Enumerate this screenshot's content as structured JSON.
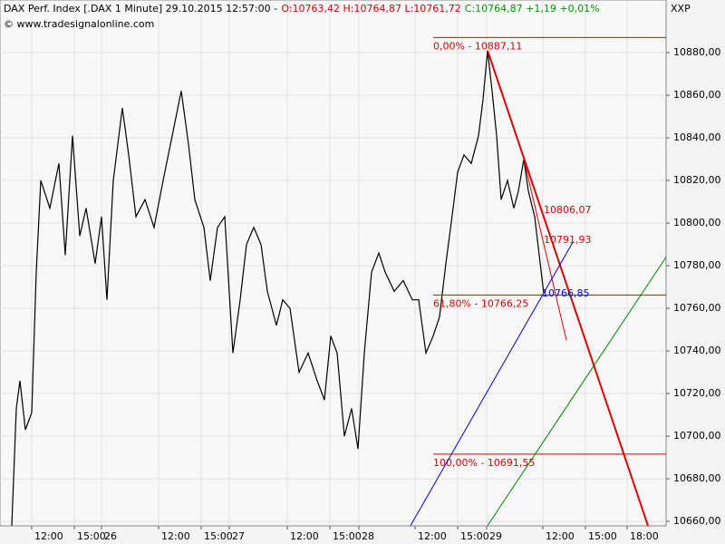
{
  "chart_data": {
    "type": "line",
    "title": "DAX Perf. Index [.DAX  1 Minute] 29.10.2015 12:57:00 -",
    "ohl": "O:10763,42 H:10764,87 L:10761,72",
    "close_change": "C:10764,87 +1,19 +0,01%",
    "source": "© www.tradesignalonline.com",
    "axis_label": "XXP",
    "series": [
      {
        "name": "DAX Perf. Index",
        "color": "#000000",
        "x": [
          13,
          18,
          22,
          28,
          35,
          40,
          45,
          55,
          65,
          72,
          80,
          88,
          95,
          105,
          112,
          118,
          125,
          135,
          142,
          150,
          160,
          170,
          180,
          190,
          200,
          208,
          215,
          225,
          232,
          240,
          248,
          257,
          265,
          272,
          280,
          288,
          295,
          305,
          312,
          320,
          330,
          340,
          350,
          358,
          365,
          372,
          380,
          388,
          395,
          402,
          410,
          418,
          425,
          435,
          445,
          455,
          462,
          470,
          478,
          485,
          492,
          500,
          505,
          512,
          520,
          528,
          533,
          538,
          543,
          548,
          553,
          560,
          567,
          572,
          578,
          583,
          590,
          595,
          600
        ],
        "values": [
          10658,
          10713,
          10726,
          10703,
          10711,
          10777,
          10820,
          10807,
          10828,
          10785,
          10841,
          10794,
          10807,
          10781,
          10803,
          10764,
          10820,
          10854,
          10832,
          10803,
          10811,
          10798,
          10820,
          10841,
          10862,
          10837,
          10811,
          10798,
          10773,
          10798,
          10803,
          10739,
          10764,
          10790,
          10798,
          10790,
          10768,
          10752,
          10764,
          10760,
          10730,
          10739,
          10726,
          10717,
          10747,
          10739,
          10700,
          10713,
          10694,
          10739,
          10777,
          10786,
          10777,
          10768,
          10773,
          10764,
          10764,
          10739,
          10747,
          10756,
          10781,
          10807,
          10824,
          10832,
          10828,
          10841,
          10858,
          10881,
          10862,
          10841,
          10811,
          10820,
          10807,
          10815,
          10830,
          10815,
          10803,
          10785,
          10767
        ]
      }
    ],
    "levels": [
      {
        "value": 10887.11,
        "label": "0,00% - 10887,11"
      },
      {
        "value": 10766.25,
        "label": "61,80% - 10766,25"
      },
      {
        "value": 10691.55,
        "label": "100,00% - 10691,55"
      }
    ],
    "level_color": "#e00000",
    "level_xlim": [
      478,
      735
    ],
    "price_labels": [
      {
        "x": 600,
        "value": 10806.07,
        "label": "10806,07",
        "color": "#e00000"
      },
      {
        "x": 600,
        "value": 10791.93,
        "label": "10791,93",
        "color": "#e00000"
      },
      {
        "x": 598,
        "value": 10766.85,
        "label": "10766,85",
        "color": "#0000e0"
      }
    ],
    "trendlines": [
      {
        "color": "#e00000",
        "width": 2,
        "x": [
          538,
          715
        ],
        "y": [
          10881,
          10658
        ]
      },
      {
        "color": "#e00000",
        "width": 1,
        "x": [
          578,
          625
        ],
        "y": [
          10830,
          10745
        ]
      },
      {
        "color": "#0000e0",
        "width": 1,
        "x": [
          453,
          632
        ],
        "y": [
          10658,
          10791
        ]
      },
      {
        "color": "#008000",
        "width": 1,
        "x": [
          538,
          735
        ],
        "y": [
          10658,
          10784
        ]
      }
    ],
    "xlim": [
      0,
      735
    ],
    "xticks": [
      {
        "value": 35,
        "label": "12:00"
      },
      {
        "value": 82,
        "label": "15:00"
      },
      {
        "value": 112,
        "label": "26"
      },
      {
        "value": 175,
        "label": "12:00"
      },
      {
        "value": 222,
        "label": "15:00"
      },
      {
        "value": 253,
        "label": "27"
      },
      {
        "value": 317,
        "label": "12:00"
      },
      {
        "value": 364,
        "label": "15:00"
      },
      {
        "value": 396,
        "label": "28"
      },
      {
        "value": 458,
        "label": "12:00"
      },
      {
        "value": 505,
        "label": "15:00"
      },
      {
        "value": 537,
        "label": "29"
      },
      {
        "value": 599,
        "label": "12:00"
      },
      {
        "value": 646,
        "label": "15:00"
      },
      {
        "value": 692,
        "label": "18:00"
      }
    ],
    "ylim": [
      10657.9,
      10904.7
    ],
    "yticks": [
      {
        "value": 10660,
        "label": "10660,00"
      },
      {
        "value": 10680,
        "label": "10680,00"
      },
      {
        "value": 10700,
        "label": "10700,00"
      },
      {
        "value": 10720,
        "label": "10720,00"
      },
      {
        "value": 10740,
        "label": "10740,00"
      },
      {
        "value": 10760,
        "label": "10760,00"
      },
      {
        "value": 10780,
        "label": "10780,00"
      },
      {
        "value": 10800,
        "label": "10800,00"
      },
      {
        "value": 10820,
        "label": "10820,00"
      },
      {
        "value": 10840,
        "label": "10840,00"
      },
      {
        "value": 10860,
        "label": "10860,00"
      },
      {
        "value": 10880,
        "label": "10880,00"
      }
    ],
    "grid": true
  }
}
